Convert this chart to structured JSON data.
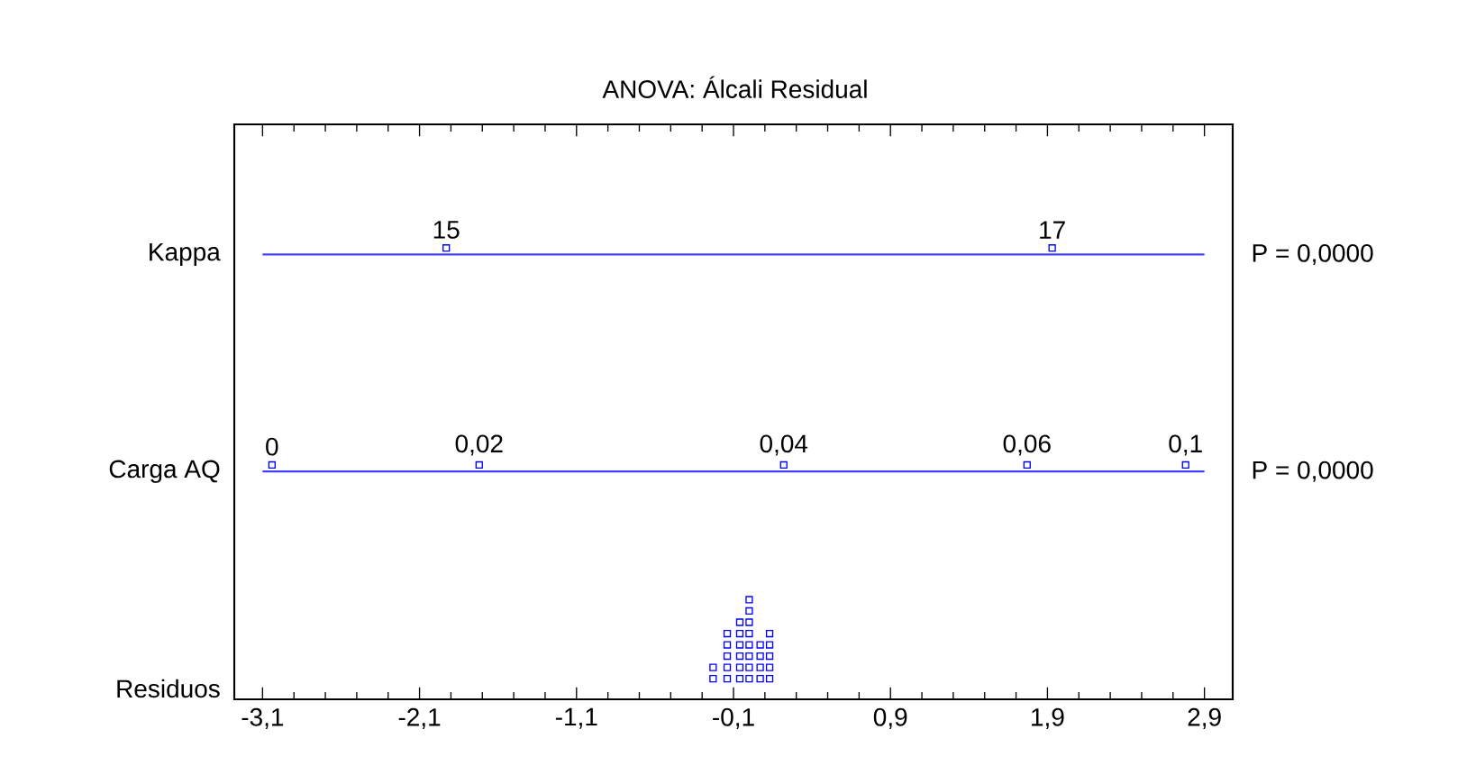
{
  "chart_data": {
    "type": "scatter",
    "orientation": "horizontal",
    "title": "ANOVA: Álcali Residual",
    "marker": "square",
    "categories": [
      "Kappa",
      "Carga AQ",
      "Residuos"
    ],
    "xlim": [
      -3.28,
      3.08
    ],
    "xticks": [
      {
        "value": -3.1,
        "label": "-3,1"
      },
      {
        "value": -2.1,
        "label": "-2,1"
      },
      {
        "value": -1.1,
        "label": "-1,1"
      },
      {
        "value": -0.1,
        "label": "-0,1"
      },
      {
        "value": 0.9,
        "label": "0,9"
      },
      {
        "value": 1.9,
        "label": "1,9"
      },
      {
        "value": 2.9,
        "label": "2,9"
      }
    ],
    "annotations": [
      {
        "text": "15",
        "x": -1.93,
        "y": "Kappa"
      },
      {
        "text": "17",
        "x": 1.93,
        "y": "Kappa"
      },
      {
        "text": "0",
        "x": -3.04,
        "y": "Carga AQ"
      },
      {
        "text": "0,02",
        "x": -1.72,
        "y": "Carga AQ"
      },
      {
        "text": "0,04",
        "x": 0.22,
        "y": "Carga AQ"
      },
      {
        "text": "0,06",
        "x": 1.77,
        "y": "Carga AQ"
      },
      {
        "text": "0,1",
        "x": 2.78,
        "y": "Carga AQ"
      },
      "P = 0,0000",
      "P = 0,0000"
    ],
    "series": [
      {
        "x": [
          "Kappa",
          "Kappa"
        ],
        "values": [
          -1.93,
          1.93
        ],
        "color": "#0000ff",
        "line_style": "solid"
      },
      {
        "x": [
          "Carga AQ",
          "Carga AQ",
          "Carga AQ",
          "Carga AQ",
          "Carga AQ"
        ],
        "values": [
          -3.04,
          -1.72,
          0.22,
          1.77,
          2.78
        ],
        "color": "#0000ff",
        "line_style": "solid"
      },
      {
        "x": [
          "Residuos",
          "Residuos",
          "Residuos",
          "Residuos",
          "Residuos",
          "Residuos",
          "Residuos",
          "Residuos",
          "Residuos",
          "Residuos",
          "Residuos",
          "Residuos",
          "Residuos",
          "Residuos",
          "Residuos",
          "Residuos",
          "Residuos",
          "Residuos",
          "Residuos",
          "Residuos",
          "Residuos",
          "Residuos",
          "Residuos",
          "Residuos",
          "Residuos",
          "Residuos",
          "Residuos",
          "Residuos",
          "Residuos",
          "Residuos"
        ],
        "values": [
          -0.23,
          -0.23,
          -0.14,
          -0.14,
          -0.14,
          -0.14,
          -0.14,
          -0.06,
          -0.06,
          -0.06,
          -0.06,
          -0.06,
          -0.06,
          0.0,
          0.0,
          0.0,
          0.0,
          0.0,
          0.0,
          0.0,
          0.0,
          0.07,
          0.07,
          0.07,
          0.07,
          0.13,
          0.13,
          0.13,
          0.13,
          0.13
        ],
        "color": "#0000ff"
      }
    ]
  }
}
